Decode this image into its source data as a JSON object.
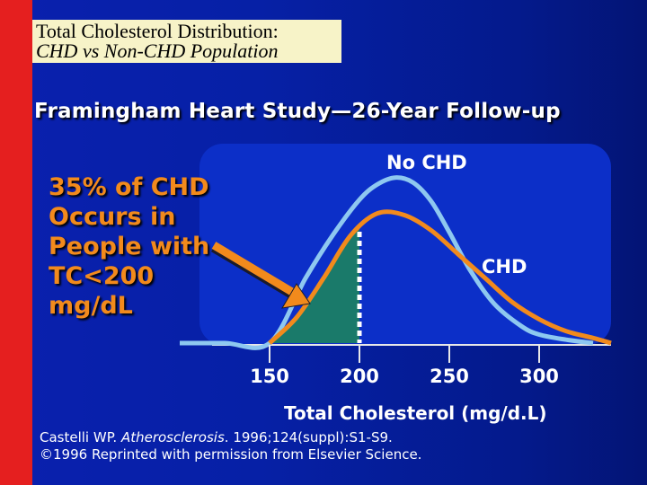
{
  "slide": {
    "title_line1": "Total Cholesterol Distribution:",
    "title_line2": "CHD vs Non-CHD Population",
    "subtitle": "Framingham Heart Study—26-Year Follow-up",
    "callout_lines": [
      "35% of CHD",
      "Occurs in",
      "People with",
      "TC<200",
      "mg/dL"
    ]
  },
  "citation": {
    "author": "Castelli WP.",
    "journal": "Atherosclerosis",
    "details": ". 1996;124(suppl):S1-S9.",
    "copyright": "©1996 Reprinted with permission from Elsevier Science."
  },
  "colors": {
    "accent_red": "#e51f1f",
    "no_chd_curve": "#8ec8f0",
    "chd_curve": "#f28a1c",
    "shaded_area": "#1a7a6a",
    "callout_text": "#f28a1c"
  },
  "chart_data": {
    "type": "line",
    "title": "Framingham Heart Study—26-Year Follow-up",
    "xlabel": "Total Cholesterol (mg/d.L)",
    "ylabel": "",
    "xlim": [
      100,
      340
    ],
    "ylim": [
      0,
      1
    ],
    "x_ticks": [
      150,
      200,
      250,
      300
    ],
    "threshold": 200,
    "shaded_region": "CHD curve area where TC<200",
    "series": [
      {
        "name": "No CHD",
        "x": [
          100,
          125,
          150,
          170,
          185,
          200,
          210,
          220,
          230,
          240,
          250,
          262,
          275,
          290,
          300,
          315,
          330
        ],
        "y": [
          0.0,
          0.0,
          0.0,
          0.38,
          0.63,
          0.84,
          0.93,
          0.97,
          0.94,
          0.83,
          0.65,
          0.42,
          0.23,
          0.1,
          0.05,
          0.02,
          0.0
        ]
      },
      {
        "name": "CHD",
        "x": [
          150,
          165,
          180,
          195,
          210,
          225,
          240,
          255,
          270,
          285,
          300,
          315,
          330,
          340
        ],
        "y": [
          0.0,
          0.15,
          0.38,
          0.63,
          0.76,
          0.75,
          0.66,
          0.52,
          0.38,
          0.24,
          0.14,
          0.07,
          0.03,
          0.0
        ]
      }
    ]
  }
}
